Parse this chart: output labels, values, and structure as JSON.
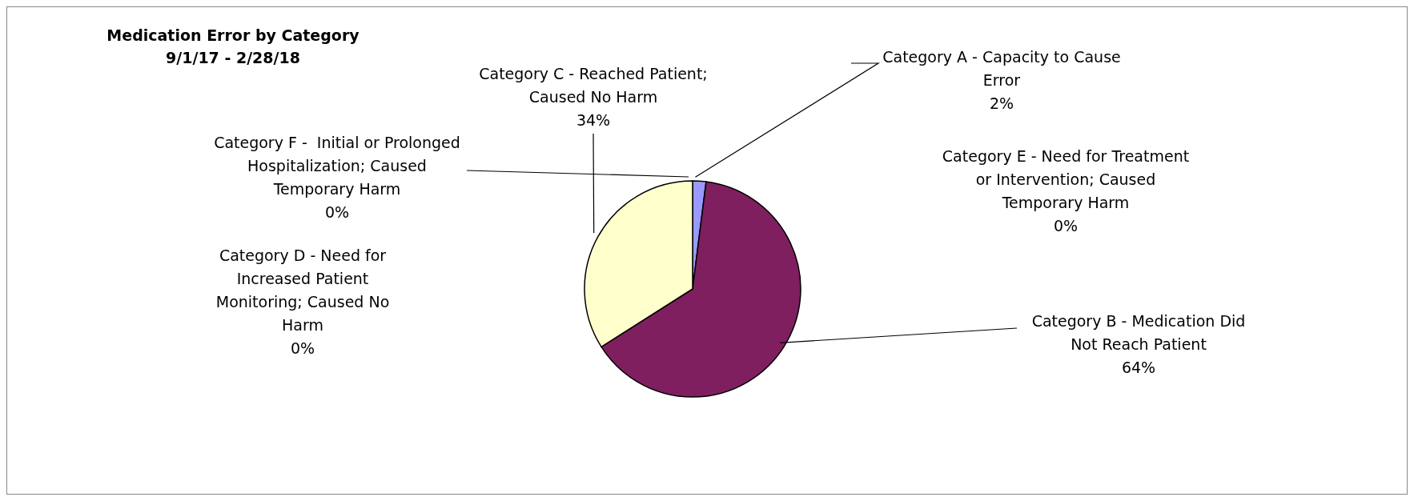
{
  "chart_data": {
    "type": "pie",
    "title": "Medication Error by Category",
    "subtitle": "9/1/17 - 2/28/18",
    "categories": [
      "Category A - Capacity to Cause Error",
      "Category B - Medication Did Not Reach Patient",
      "Category C - Reached Patient; Caused No Harm",
      "Category D - Need for Increased Patient Monitoring; Caused No Harm",
      "Category E - Need for Treatment or Intervention; Caused Temporary Harm",
      "Category F -  Initial or Prolonged Hospitalization; Caused Temporary Harm"
    ],
    "values": [
      2,
      64,
      34,
      0,
      0,
      0
    ],
    "value_labels": [
      "2%",
      "64%",
      "34%",
      "0%",
      "0%",
      "0%"
    ],
    "colors": [
      "#9999ff",
      "#7f1f5f",
      "#ffffcc",
      "#cc99ff",
      "#33cccc",
      "#99ccff"
    ],
    "legend": false
  }
}
